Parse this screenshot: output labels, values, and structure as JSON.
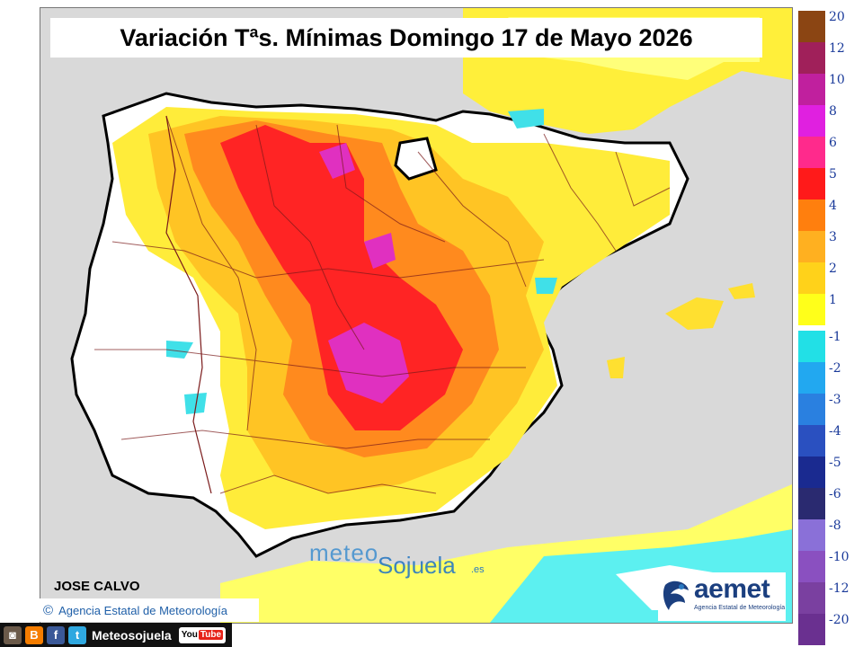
{
  "title": "Variación Tªs. Mínimas Domingo 17 de Mayo 2026",
  "legend": {
    "levels": [
      {
        "label": "20",
        "color": "#8b4513"
      },
      {
        "label": "12",
        "color": "#a0205a"
      },
      {
        "label": "10",
        "color": "#c0209e"
      },
      {
        "label": "8",
        "color": "#e020e0"
      },
      {
        "label": "6",
        "color": "#ff2a8c"
      },
      {
        "label": "5",
        "color": "#ff1a1a"
      },
      {
        "label": "4",
        "color": "#ff7f0e"
      },
      {
        "label": "3",
        "color": "#ffb020"
      },
      {
        "label": "2",
        "color": "#ffd21a"
      },
      {
        "label": "1",
        "color": "#ffff1a"
      },
      {
        "label": "-1",
        "color": "#22e0e6"
      },
      {
        "label": "-2",
        "color": "#22a8f0"
      },
      {
        "label": "-3",
        "color": "#2a80e0"
      },
      {
        "label": "-4",
        "color": "#2a50c0"
      },
      {
        "label": "-5",
        "color": "#1a2a90"
      },
      {
        "label": "-6",
        "color": "#2a2a70"
      },
      {
        "label": "-8",
        "color": "#8a70d8"
      },
      {
        "label": "-10",
        "color": "#8a50c0"
      },
      {
        "label": "-12",
        "color": "#7a40a0"
      },
      {
        "label": "-20",
        "color": "#6a3090"
      }
    ]
  },
  "author": "JOSE CALVO",
  "copyright": "Agencia Estatal de Meteorología",
  "watermark": {
    "prefix": "meteo",
    "brand": "Sojuela",
    "tld": ".es"
  },
  "logo": {
    "name": "aemet",
    "subtitle": "Agencia Estatal de Meteorología"
  },
  "social": {
    "handle": "Meteosojuela",
    "icons": [
      "instagram-icon",
      "blogger-icon",
      "facebook-icon",
      "twitter-icon"
    ],
    "youtube_label": "You",
    "youtube_tube": "Tube"
  }
}
